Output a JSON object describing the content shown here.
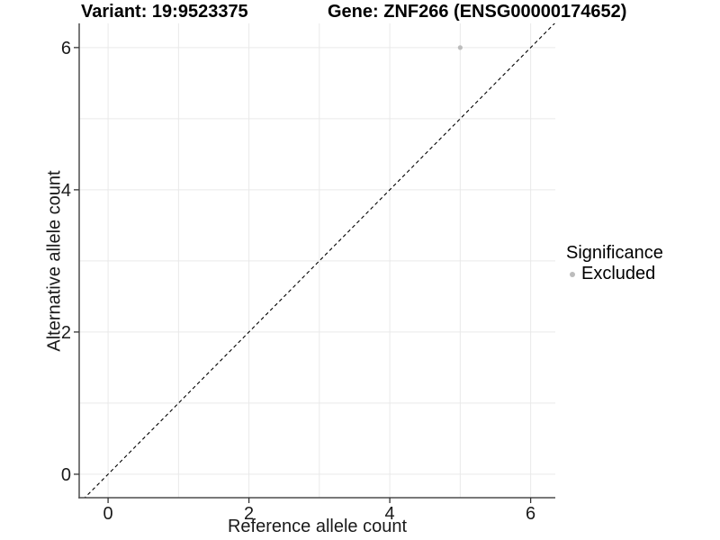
{
  "figure": {
    "background": "#ffffff"
  },
  "chart_data": {
    "type": "scatter",
    "titles": {
      "left": "Variant: 19:9523375",
      "right": "Gene: ZNF266 (ENSG00000174652)"
    },
    "xlabel": "Reference allele count",
    "ylabel": "Alternative allele count",
    "xlim": [
      -0.41,
      6.35
    ],
    "ylim": [
      -0.33,
      6.34
    ],
    "x_ticks": [
      0,
      2,
      4,
      6
    ],
    "y_ticks": [
      0,
      2,
      4,
      6
    ],
    "x_gridlines": [
      0,
      1,
      2,
      3,
      4,
      5,
      6
    ],
    "y_gridlines": [
      0,
      1,
      2,
      3,
      4,
      5,
      6
    ],
    "grid": "on",
    "reference_line": {
      "equation": "y = x",
      "style": "dashed",
      "color": "#000000"
    },
    "series": [
      {
        "name": "Excluded",
        "color": "#bcbcbc",
        "marker": "circle",
        "points": [
          {
            "x": 5,
            "y": 6
          }
        ]
      }
    ],
    "legend": {
      "title": "Significance",
      "position": "right",
      "items": [
        {
          "label": "Excluded",
          "color": "#bcbcbc",
          "marker": "circle"
        }
      ]
    },
    "colors": {
      "grid": "#e9e9e9",
      "axis_line": "#4d4d4d",
      "tick": "#333333",
      "tick_text": "#1a1a1a",
      "title_text": "#000000"
    }
  }
}
